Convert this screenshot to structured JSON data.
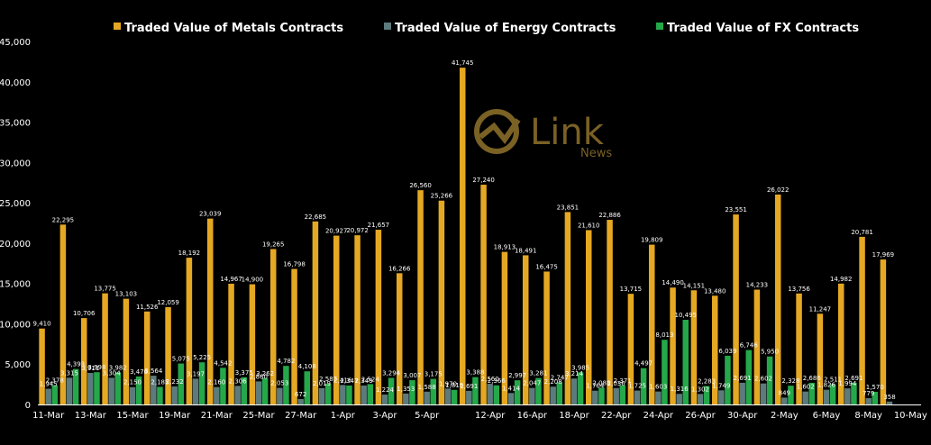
{
  "watermark": {
    "brand": "Link",
    "sub": "News",
    "color": "#7a6124"
  },
  "chart_data": {
    "type": "bar",
    "ylim": [
      0,
      45000
    ],
    "yticks": [
      0,
      5000,
      10000,
      15000,
      20000,
      25000,
      30000,
      35000,
      40000,
      45000
    ],
    "ytick_labels": [
      "0",
      "5,000",
      "10,000",
      "15,000",
      "20,000",
      "25,000",
      "30,000",
      "35,000",
      "40,000",
      "45,000"
    ],
    "legend_position": "top",
    "grid": false,
    "categories": [
      "11-Mar",
      "12-Mar",
      "13-Mar",
      "14-Mar",
      "15-Mar",
      "18-Mar",
      "19-Mar",
      "20-Mar",
      "21-Mar",
      "22-Mar",
      "25-Mar",
      "26-Mar",
      "27-Mar",
      "28-Mar",
      "1-Apr",
      "2-Apr",
      "3-Apr",
      "4-Apr",
      "5-Apr",
      "8-Apr",
      "11-Apr",
      "12-Apr",
      "15-Apr",
      "16-Apr",
      "17-Apr",
      "18-Apr",
      "19-Apr",
      "22-Apr",
      "23-Apr",
      "24-Apr",
      "25-Apr",
      "26-Apr",
      "29-Apr",
      "30-Apr",
      "1-May",
      "2-May",
      "3-May",
      "6-May",
      "7-May",
      "8-May",
      "9-May",
      "10-May"
    ],
    "xtick_labels": [
      "11-Mar",
      "",
      "13-Mar",
      "",
      "15-Mar",
      "",
      "19-Mar",
      "",
      "21-Mar",
      "",
      "25-Mar",
      "",
      "27-Mar",
      "",
      "1-Apr",
      "",
      "3-Apr",
      "",
      "5-Apr",
      "",
      "",
      "12-Apr",
      "",
      "16-Apr",
      "",
      "18-Apr",
      "",
      "22-Apr",
      "",
      "24-Apr",
      "",
      "26-Apr",
      "",
      "30-Apr",
      "",
      "2-May",
      "",
      "6-May",
      "",
      "8-May",
      "",
      "10-May"
    ],
    "series": [
      {
        "name": "Traded Value of Metals Contracts",
        "color": "#e5a823",
        "values": [
          9410,
          22295,
          10706,
          13775,
          13103,
          11526,
          12059,
          18192,
          23039,
          14967,
          14900,
          19265,
          16798,
          22685,
          20927,
          20972,
          21657,
          16266,
          26560,
          25266,
          41745,
          27240,
          18913,
          18491,
          16475,
          23851,
          21610,
          22886,
          13715,
          19809,
          14490,
          14151,
          13480,
          23551,
          14233,
          26022,
          13756,
          11247,
          14982,
          20781,
          17969,
          null
        ],
        "labels": [
          "9,410",
          "22,295",
          "10,706",
          "13,775",
          "13,103",
          "11,526",
          "12,059",
          "18,192",
          "23,039",
          "14,967",
          "14,900",
          "19,265",
          "16,798",
          "22,685",
          "20,927",
          "20,972",
          "21,657",
          "16,266",
          "26,560",
          "25,266",
          "41,745",
          "27,240",
          "18,913",
          "18,491",
          "16,475",
          "23,851",
          "21,610",
          "22,886",
          "13,715",
          "19,809",
          "14,490",
          "14,151",
          "13,480",
          "23,551",
          "14,233",
          "26,022",
          "13,756",
          "11,247",
          "14,982",
          "20,781",
          "17,969",
          ""
        ]
      },
      {
        "name": "Traded Value of Energy Contracts",
        "color": "#5d7b7d",
        "values": [
          1945,
          3315,
          3911,
          3304,
          2150,
          3564,
          2232,
          3197,
          2160,
          2306,
          2860,
          2053,
          672,
          2019,
          2416,
          2349,
          1224,
          1353,
          1588,
          1970,
          1691,
          2560,
          1414,
          2047,
          2208,
          3214,
          1704,
          2036,
          1725,
          1603,
          1316,
          1302,
          1749,
          2691,
          2602,
          849,
          1602,
          1826,
          1994,
          779,
          358,
          null
        ],
        "labels": [
          "1,945",
          "3,315",
          "3,911",
          "3,304",
          "2,150",
          "3,564",
          "2,232",
          "3,197",
          "2,160",
          "2,306",
          "2,860",
          "2,053",
          "672",
          "2,019",
          "2,416",
          "2,349",
          "1,224",
          "1,353",
          "1,588",
          "1,970",
          "1,691",
          "2,560",
          "1,414",
          "2,047",
          "2,208",
          "3,214",
          "1,704",
          "2,036",
          "1,725",
          "1,603",
          "1,316",
          "1,302",
          "1,749",
          "2,691",
          "2,602",
          "849",
          "1,602",
          "1,826",
          "1,994",
          "779",
          "358",
          ""
        ]
      },
      {
        "name": "Traded Value of FX Contracts",
        "color": "#25a84a",
        "values": [
          2378,
          4393,
          3998,
          3982,
          3476,
          2185,
          5075,
          5225,
          4542,
          3375,
          3262,
          4782,
          4108,
          2587,
          2347,
          2524,
          3294,
          3007,
          3175,
          1810,
          3388,
          2366,
          2997,
          3281,
          2747,
          3985,
          2088,
          2371,
          4497,
          8013,
          10495,
          2283,
          6039,
          6746,
          5950,
          2328,
          2686,
          2511,
          2691,
          1570,
          null,
          null
        ],
        "labels": [
          "2,378",
          "4,393",
          "3,998",
          "3,982",
          "3,476",
          "2,185",
          "5,075",
          "5,225",
          "4,542",
          "3,375",
          "3,262",
          "4,782",
          "4,108",
          "2,587",
          "2,347",
          "2,524",
          "3,294",
          "3,007",
          "3,175",
          "1,810",
          "3,388",
          "2,366",
          "2,997",
          "3,281",
          "2,747",
          "3,985",
          "2,088",
          "2,371",
          "4,497",
          "8,013",
          "10,495",
          "2,283",
          "6,039",
          "6,746",
          "5,950",
          "2,328",
          "2,686",
          "2,511",
          "2,691",
          "1,570",
          "",
          ""
        ]
      }
    ]
  }
}
